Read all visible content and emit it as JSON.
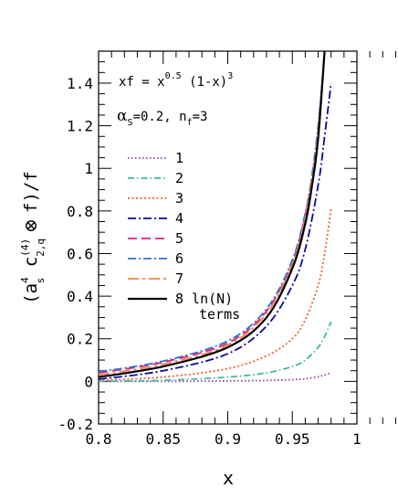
{
  "chart_data": {
    "type": "line",
    "annotations": {
      "formula_prefix": "xf = x",
      "formula_exp": "0.5",
      "formula_mid": " (1-x)",
      "formula_exp2": "3",
      "alpha_symbol": "α",
      "alpha_sub": "S",
      "alpha_rest": "=0.2, n",
      "nf_sub": "f",
      "nf_rest": "=3"
    },
    "ylabel": {
      "open": "(a",
      "a_sup": "4",
      "a_sub": "s",
      "c": " c",
      "c_sup": "(4)",
      "c_sub": "2,q",
      "otimes": " ⊗ ",
      "tail": "f)/f"
    },
    "xlabel": "x",
    "xlim": [
      0.8,
      1.0
    ],
    "ylim": [
      -0.2,
      1.55
    ],
    "x_ticks": [
      "0.8",
      "0.85",
      "0.9",
      "0.95",
      "1"
    ],
    "x_tick_values": [
      0.8,
      0.85,
      0.9,
      0.95,
      1.0
    ],
    "y_ticks": [
      "-0.2",
      "0",
      "0.2",
      "0.4",
      "0.6",
      "0.8",
      "1",
      "1.2",
      "1.4"
    ],
    "y_tick_values": [
      -0.2,
      0,
      0.2,
      0.4,
      0.6,
      0.8,
      1.0,
      1.2,
      1.4
    ],
    "legend_extra": "terms",
    "series": [
      {
        "name": "1",
        "color": "#8b3fa8",
        "dash": "1.5,2.5",
        "x": [
          0.8,
          0.85,
          0.9,
          0.93,
          0.95,
          0.96,
          0.97,
          0.975,
          0.98
        ],
        "y": [
          0.0,
          0.0,
          0.002,
          0.004,
          0.008,
          0.012,
          0.022,
          0.03,
          0.04
        ]
      },
      {
        "name": "2",
        "color": "#40b8a0",
        "dash": "7,3,1.5,3",
        "x": [
          0.8,
          0.85,
          0.9,
          0.93,
          0.95,
          0.96,
          0.97,
          0.975,
          0.98
        ],
        "y": [
          0.0,
          0.005,
          0.02,
          0.04,
          0.07,
          0.1,
          0.16,
          0.21,
          0.28
        ]
      },
      {
        "name": "3",
        "color": "#f06030",
        "dash": "2,2.5",
        "x": [
          0.8,
          0.85,
          0.9,
          0.93,
          0.95,
          0.96,
          0.97,
          0.975,
          0.98
        ],
        "y": [
          0.005,
          0.02,
          0.06,
          0.12,
          0.2,
          0.29,
          0.45,
          0.6,
          0.81
        ]
      },
      {
        "name": "4",
        "color": "#0a0aa0",
        "dash": "9,3,2,3",
        "x": [
          0.8,
          0.85,
          0.9,
          0.93,
          0.95,
          0.96,
          0.97,
          0.975,
          0.98
        ],
        "y": [
          0.01,
          0.05,
          0.13,
          0.26,
          0.45,
          0.62,
          0.92,
          1.15,
          1.4
        ]
      },
      {
        "name": "5",
        "color": "#e0207a",
        "dash": "10,5",
        "x": [
          0.8,
          0.85,
          0.9,
          0.93,
          0.95,
          0.96,
          0.965,
          0.97,
          0.975
        ],
        "y": [
          0.04,
          0.09,
          0.18,
          0.33,
          0.56,
          0.78,
          0.95,
          1.18,
          1.55
        ]
      },
      {
        "name": "6",
        "color": "#3070d0",
        "dash": "9,3,2,3",
        "x": [
          0.8,
          0.85,
          0.9,
          0.93,
          0.95,
          0.96,
          0.965,
          0.97,
          0.975
        ],
        "y": [
          0.045,
          0.095,
          0.19,
          0.34,
          0.57,
          0.79,
          0.96,
          1.2,
          1.55
        ]
      },
      {
        "name": "7",
        "color": "#f08050",
        "dash": "12,4,3,4",
        "x": [
          0.8,
          0.85,
          0.9,
          0.93,
          0.95,
          0.96,
          0.965,
          0.97,
          0.975
        ],
        "y": [
          0.03,
          0.08,
          0.17,
          0.32,
          0.55,
          0.77,
          0.94,
          1.17,
          1.55
        ]
      },
      {
        "name": "8",
        "color": "#000000",
        "dash": "",
        "x": [
          0.8,
          0.85,
          0.9,
          0.93,
          0.95,
          0.96,
          0.965,
          0.97,
          0.975
        ],
        "y": [
          0.02,
          0.07,
          0.16,
          0.3,
          0.53,
          0.74,
          0.91,
          1.14,
          1.55
        ]
      }
    ],
    "legend_label_8": "8  ln(N)"
  }
}
